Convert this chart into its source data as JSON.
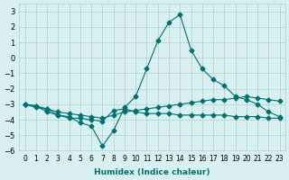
{
  "xlabel": "Humidex (Indice chaleur)",
  "x": [
    0,
    1,
    2,
    3,
    4,
    5,
    6,
    7,
    8,
    9,
    10,
    11,
    12,
    13,
    14,
    15,
    16,
    17,
    18,
    19,
    20,
    21,
    22,
    23
  ],
  "line1": [
    -3.0,
    -3.2,
    -3.3,
    -3.7,
    -3.8,
    -4.2,
    -4.4,
    -5.7,
    -4.7,
    -3.2,
    -2.5,
    -0.7,
    1.1,
    2.3,
    2.8,
    0.5,
    -0.7,
    -1.4,
    -1.8,
    -2.5,
    -2.7,
    -3.0,
    -3.5,
    -3.8
  ],
  "line2": [
    -3.0,
    -3.1,
    -3.5,
    -3.7,
    -3.9,
    -3.9,
    -4.0,
    -4.1,
    -3.4,
    -3.3,
    -3.5,
    -3.6,
    -3.6,
    -3.6,
    -3.7,
    -3.7,
    -3.7,
    -3.7,
    -3.7,
    -3.8,
    -3.8,
    -3.8,
    -3.9,
    -3.9
  ],
  "line3": [
    -3.0,
    -3.1,
    -3.3,
    -3.5,
    -3.6,
    -3.7,
    -3.8,
    -3.9,
    -3.7,
    -3.5,
    -3.4,
    -3.3,
    -3.2,
    -3.1,
    -3.0,
    -2.9,
    -2.8,
    -2.7,
    -2.7,
    -2.6,
    -2.5,
    -2.6,
    -2.7,
    -2.8
  ],
  "color": "#007070",
  "bg_color": "#d8f0f0",
  "grid_color": "#b0d0d0",
  "ylim": [
    -6,
    3.5
  ],
  "yticks": [
    -6,
    -5,
    -4,
    -3,
    -2,
    -1,
    0,
    1,
    2,
    3
  ],
  "xlim": [
    -0.5,
    23.5
  ]
}
